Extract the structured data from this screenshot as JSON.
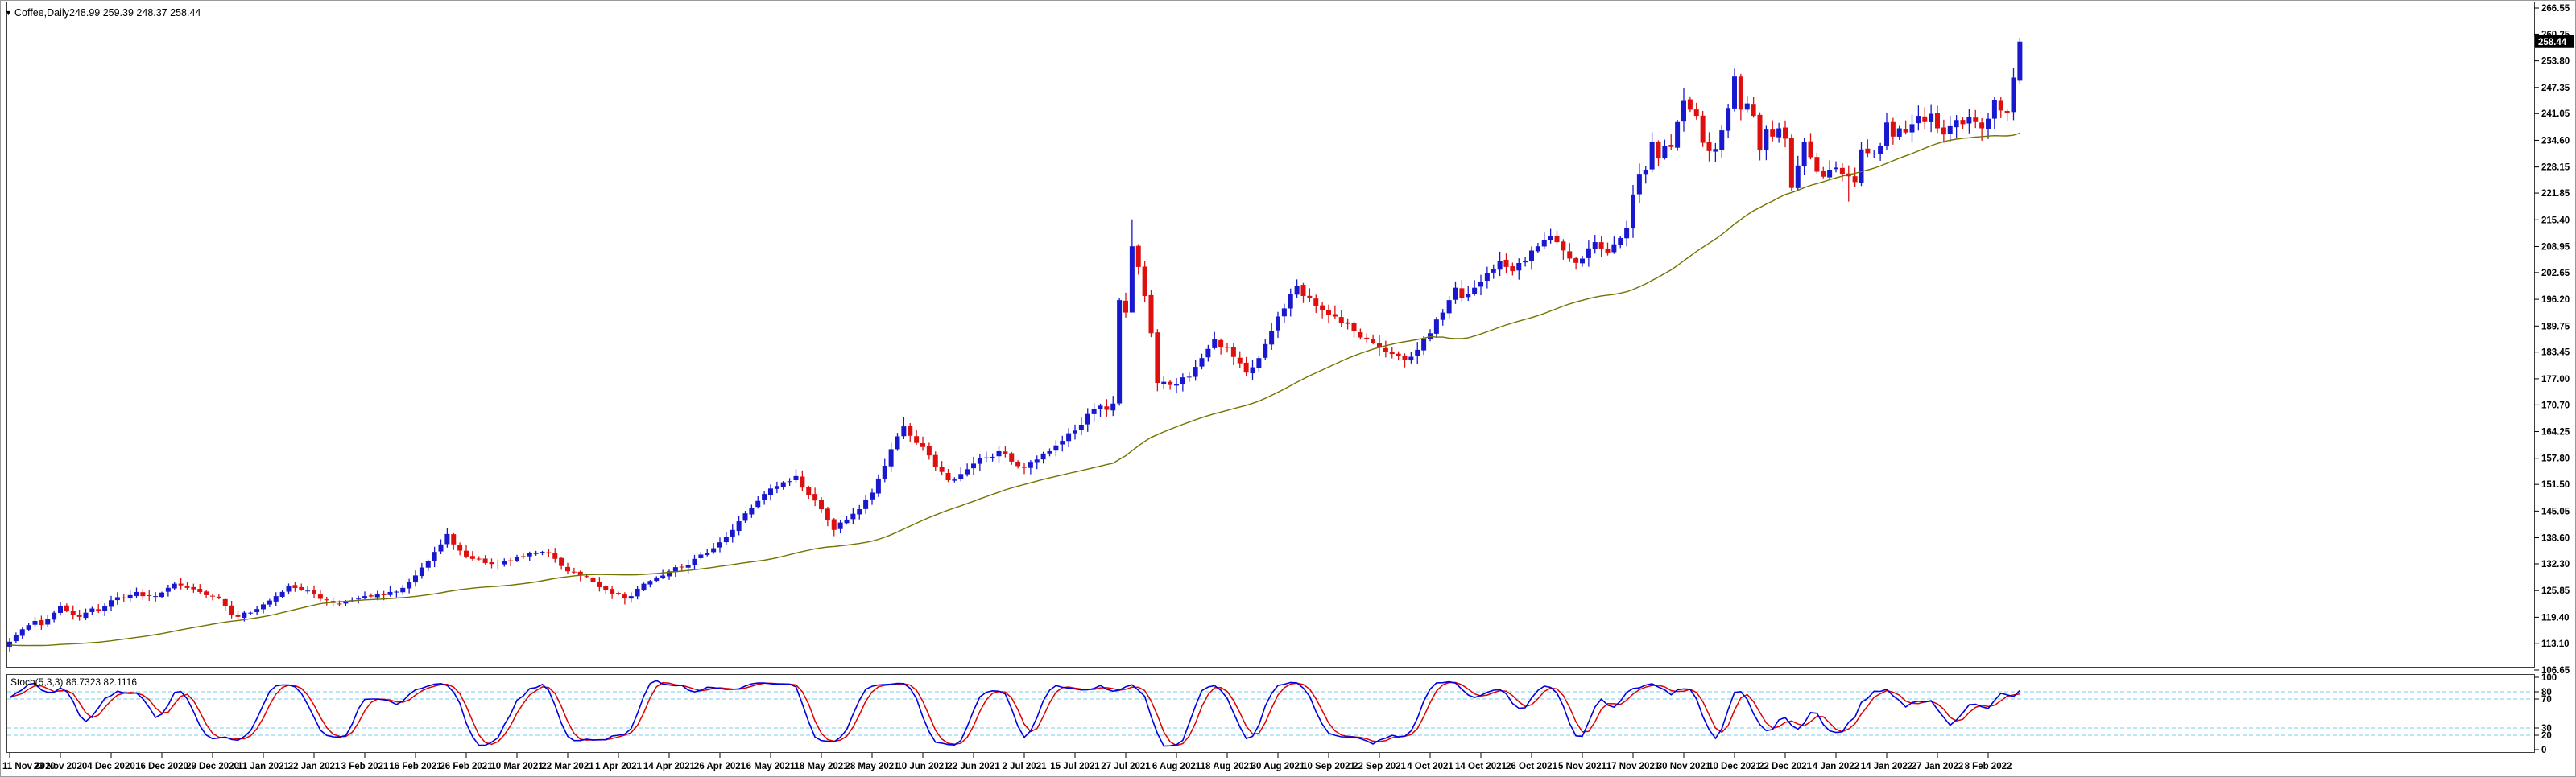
{
  "window": {
    "symbol_text": "Coffee,Daily",
    "ohlc_text": "248.99 259.39 248.37 258.44",
    "dropdown_icon": "▼"
  },
  "indicator_label": {
    "text": "Stoch(5,3,3) 86.7323 82.1116"
  },
  "price_axis": {
    "current_price": "258.44",
    "ticks": [
      266.55,
      260.25,
      253.8,
      247.35,
      241.05,
      234.6,
      228.15,
      221.85,
      215.4,
      208.95,
      202.65,
      196.2,
      189.75,
      183.45,
      177.0,
      170.7,
      164.25,
      157.8,
      151.5,
      145.05,
      138.6,
      132.3,
      125.85,
      119.4,
      113.1,
      106.65
    ]
  },
  "stoch_axis": {
    "ticks": [
      100,
      80,
      70,
      30,
      20,
      0
    ],
    "level_lines": [
      80,
      70,
      30,
      20
    ]
  },
  "time_axis": {
    "candles_per_tick": 8,
    "labels": [
      "11 Nov 2020",
      "23 Nov 2020",
      "4 Dec 2020",
      "16 Dec 2020",
      "29 Dec 2020",
      "11 Jan 2021",
      "22 Jan 2021",
      "3 Feb 2021",
      "16 Feb 2021",
      "26 Feb 2021",
      "10 Mar 2021",
      "22 Mar 2021",
      "1 Apr 2021",
      "14 Apr 2021",
      "26 Apr 2021",
      "6 May 2021",
      "18 May 2021",
      "28 May 2021",
      "10 Jun 2021",
      "22 Jun 2021",
      "2 Jul 2021",
      "15 Jul 2021",
      "27 Jul 2021",
      "6 Aug 2021",
      "18 Aug 2021",
      "30 Aug 2021",
      "10 Sep 2021",
      "22 Sep 2021",
      "4 Oct 2021",
      "14 Oct 2021",
      "26 Oct 2021",
      "5 Nov 2021",
      "17 Nov 2021",
      "30 Nov 2021",
      "10 Dec 2021",
      "22 Dec 2021",
      "4 Jan 2022",
      "14 Jan 2022",
      "27 Jan 2022",
      "8 Feb 2022"
    ]
  },
  "colors": {
    "background": "#FFFFFF",
    "window_border": "#9A9A9A",
    "frame": "#3C3C3C",
    "bull": "#1818CF",
    "bear": "#DE0F0F",
    "ma": "#737300",
    "stoch_k": "#0000E0",
    "stoch_d": "#E00000",
    "stoch_levels": "#78CBEE",
    "badge_bg": "#000000",
    "badge_text": "#FFFFFF",
    "text": "#000000"
  },
  "chart_data": {
    "type": "candlestick",
    "symbol": "Coffee",
    "timeframe": "Daily",
    "num_candles": 318,
    "visible_price_range": [
      106.65,
      266.55
    ],
    "last_bar": {
      "open": 248.99,
      "high": 259.39,
      "low": 248.37,
      "close": 258.44
    },
    "ma": {
      "method": "SMA",
      "period": 50
    },
    "stochastic": {
      "k_period": 5,
      "slowing": 3,
      "d_period": 3,
      "k_value": 86.7323,
      "d_value": 82.1116,
      "scale": [
        0,
        100
      ]
    },
    "close_anchors": [
      [
        0,
        113.5
      ],
      [
        1,
        115
      ],
      [
        2,
        116.5
      ],
      [
        3,
        117.5
      ],
      [
        4,
        118.5
      ],
      [
        5,
        117.5
      ],
      [
        6,
        119
      ],
      [
        7,
        120.5
      ],
      [
        8,
        122
      ],
      [
        9,
        121
      ],
      [
        10,
        120
      ],
      [
        11,
        119.5
      ],
      [
        12,
        120.5
      ],
      [
        13,
        121.5
      ],
      [
        14,
        121
      ],
      [
        15,
        122
      ],
      [
        16,
        123.5
      ],
      [
        18,
        124
      ],
      [
        20,
        125.5
      ],
      [
        21,
        124.5
      ],
      [
        23,
        124.5
      ],
      [
        25,
        126.5
      ],
      [
        26,
        127.5
      ],
      [
        28,
        126.5
      ],
      [
        30,
        125.5
      ],
      [
        32,
        124.5
      ],
      [
        33,
        124
      ],
      [
        34,
        122
      ],
      [
        35,
        120
      ],
      [
        36,
        119.5
      ],
      [
        38,
        120.5
      ],
      [
        40,
        122.5
      ],
      [
        42,
        124.5
      ],
      [
        44,
        127
      ],
      [
        46,
        126
      ],
      [
        48,
        125
      ],
      [
        50,
        123.5
      ],
      [
        52,
        122.5
      ],
      [
        54,
        123.5
      ],
      [
        56,
        124.5
      ],
      [
        58,
        125
      ],
      [
        60,
        125.5
      ],
      [
        62,
        126.5
      ],
      [
        64,
        129.5
      ],
      [
        66,
        133
      ],
      [
        68,
        137
      ],
      [
        69,
        139.5,
        141,
        null
      ],
      [
        70,
        137
      ],
      [
        71,
        135.5
      ],
      [
        73,
        133.5
      ],
      [
        75,
        132.5
      ],
      [
        77,
        132
      ],
      [
        79,
        133
      ],
      [
        81,
        134
      ],
      [
        83,
        135
      ],
      [
        84,
        135.2
      ],
      [
        86,
        133.5
      ],
      [
        88,
        130.5
      ],
      [
        90,
        129.5
      ],
      [
        92,
        128
      ],
      [
        94,
        126
      ],
      [
        96,
        125
      ],
      [
        97,
        124,
        null,
        122.5
      ],
      [
        98,
        124.5
      ],
      [
        100,
        127.5
      ],
      [
        102,
        129
      ],
      [
        104,
        130.5
      ],
      [
        106,
        131.5
      ],
      [
        108,
        133.5
      ],
      [
        110,
        135
      ],
      [
        112,
        137.5
      ],
      [
        114,
        140.5
      ],
      [
        116,
        144.5
      ],
      [
        118,
        147.5
      ],
      [
        120,
        150.5
      ],
      [
        122,
        152
      ],
      [
        124,
        153.5,
        155.2,
        null
      ],
      [
        126,
        149
      ],
      [
        128,
        145.5
      ],
      [
        130,
        140.5
      ],
      [
        132,
        143
      ],
      [
        134,
        145.5
      ],
      [
        136,
        149.5
      ],
      [
        138,
        156
      ],
      [
        139,
        160
      ],
      [
        141,
        165.5,
        167.8,
        null
      ],
      [
        143,
        161.5
      ],
      [
        145,
        158.5
      ],
      [
        147,
        154.5
      ],
      [
        148,
        152.5
      ],
      [
        150,
        154
      ],
      [
        152,
        156.5
      ],
      [
        154,
        158
      ],
      [
        156,
        159.5
      ],
      [
        158,
        157
      ],
      [
        160,
        155.5
      ],
      [
        162,
        157.5
      ],
      [
        164,
        159.5
      ],
      [
        166,
        162
      ],
      [
        168,
        164.5
      ],
      [
        170,
        168.5
      ],
      [
        172,
        170.5
      ],
      [
        173,
        169.5
      ],
      [
        174,
        171
      ],
      [
        175,
        196,
        196.5,
        170.5
      ],
      [
        176,
        193
      ],
      [
        177,
        209,
        215.5,
        199
      ],
      [
        178,
        204
      ],
      [
        179,
        197
      ],
      [
        180,
        188
      ],
      [
        181,
        176,
        189,
        174
      ],
      [
        183,
        175.5
      ],
      [
        186,
        177.5
      ],
      [
        188,
        182
      ],
      [
        190,
        186.5
      ],
      [
        192,
        184.5
      ],
      [
        195,
        178.5
      ],
      [
        197,
        182
      ],
      [
        199,
        188.5
      ],
      [
        201,
        194
      ],
      [
        202,
        197.5
      ],
      [
        203,
        199.5,
        201,
        null
      ],
      [
        204,
        197
      ],
      [
        206,
        194.5
      ],
      [
        208,
        192.5
      ],
      [
        210,
        190.5
      ],
      [
        212,
        188.5
      ],
      [
        214,
        186.5
      ],
      [
        216,
        184.5
      ],
      [
        218,
        183
      ],
      [
        220,
        181.5
      ],
      [
        222,
        184
      ],
      [
        224,
        188
      ],
      [
        226,
        193
      ],
      [
        227,
        196
      ],
      [
        228,
        199
      ],
      [
        229,
        196.5
      ],
      [
        231,
        199
      ],
      [
        233,
        202.5
      ],
      [
        235,
        205.5
      ],
      [
        237,
        203
      ],
      [
        239,
        205.5
      ],
      [
        241,
        209
      ],
      [
        243,
        211.5
      ],
      [
        245,
        208
      ],
      [
        247,
        205
      ],
      [
        249,
        208.5
      ],
      [
        250,
        210
      ],
      [
        252,
        207.5
      ],
      [
        254,
        211
      ],
      [
        255,
        213.5
      ],
      [
        256,
        221.5
      ],
      [
        257,
        226.5
      ],
      [
        258,
        227.5
      ],
      [
        259,
        234.3
      ],
      [
        260,
        230.2
      ],
      [
        261,
        233.3
      ],
      [
        262,
        233
      ],
      [
        263,
        239
      ],
      [
        264,
        244.3,
        247.2,
        null
      ],
      [
        265,
        242
      ],
      [
        266,
        240.5
      ],
      [
        267,
        234
      ],
      [
        268,
        232
      ],
      [
        269,
        232.5
      ],
      [
        270,
        237
      ],
      [
        271,
        242.4
      ],
      [
        272,
        250,
        251.9,
        null
      ],
      [
        273,
        242
      ],
      [
        274,
        243.5
      ],
      [
        275,
        240.5
      ],
      [
        276,
        232.2
      ],
      [
        277,
        237.2
      ],
      [
        278,
        235.5
      ],
      [
        279,
        237.5
      ],
      [
        280,
        235
      ],
      [
        281,
        223.1
      ],
      [
        282,
        228.5
      ],
      [
        283,
        234.3
      ],
      [
        284,
        230.5
      ],
      [
        285,
        227
      ],
      [
        286,
        225.8
      ],
      [
        287,
        227.5
      ],
      [
        288,
        228
      ],
      [
        289,
        226.5
      ],
      [
        290,
        225.9,
        null,
        219.8
      ],
      [
        291,
        224.5
      ],
      [
        292,
        232.4
      ],
      [
        293,
        231.5
      ],
      [
        294,
        231.4
      ],
      [
        295,
        233.3
      ],
      [
        296,
        238.9,
        241.3,
        null
      ],
      [
        297,
        235.5
      ],
      [
        298,
        237.5
      ],
      [
        299,
        236.5
      ],
      [
        300,
        238.5
      ],
      [
        301,
        240.5
      ],
      [
        302,
        239
      ],
      [
        303,
        241
      ],
      [
        304,
        237.5
      ],
      [
        305,
        236,
        null,
        234
      ],
      [
        306,
        238
      ],
      [
        307,
        239.5
      ],
      [
        308,
        238.5
      ],
      [
        309,
        240.2
      ],
      [
        310,
        239
      ],
      [
        311,
        237.5,
        null,
        234.5
      ],
      [
        312,
        239.8
      ],
      [
        313,
        244.4
      ],
      [
        314,
        241.8
      ],
      [
        315,
        241.2
      ],
      [
        316,
        249.75
      ],
      [
        317,
        258.44,
        259.39,
        248.37
      ]
    ]
  }
}
